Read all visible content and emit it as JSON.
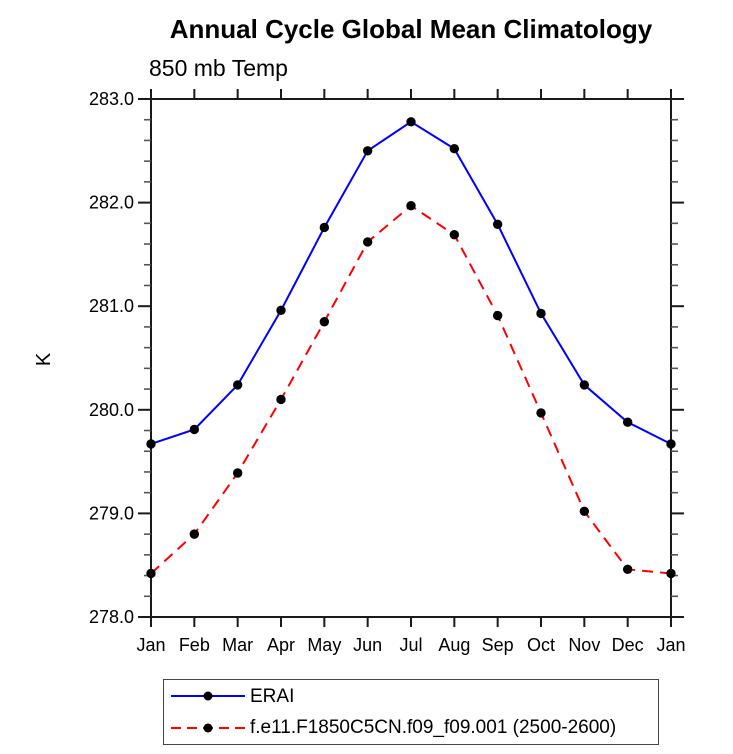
{
  "figure": {
    "background": "#ffffff"
  },
  "chart_data": {
    "type": "line",
    "title": "Annual Cycle Global Mean Climatology",
    "subtitle": "850 mb Temp",
    "ylabel": "K",
    "xlabel": "",
    "categories": [
      "Jan",
      "Feb",
      "Mar",
      "Apr",
      "May",
      "Jun",
      "Jul",
      "Aug",
      "Sep",
      "Oct",
      "Nov",
      "Dec",
      "Jan"
    ],
    "ylim": [
      278.0,
      283.0
    ],
    "ytick_values": [
      278.0,
      279.0,
      280.0,
      281.0,
      282.0,
      283.0
    ],
    "ytick_labels": [
      "278.0",
      "279.0",
      "280.0",
      "281.0",
      "282.0",
      "283.0"
    ],
    "yminor_step": 0.2,
    "grid": false,
    "frame": true,
    "legend_position": "bottom",
    "axis_color": "#1a1a1a",
    "minor_tick_color": "#555555",
    "marker_color": "#000000",
    "series": [
      {
        "name": "ERAI",
        "color": "#0000ff",
        "line_style": "solid",
        "marker": "filled-black-circle",
        "values": [
          279.67,
          279.81,
          280.24,
          280.96,
          281.76,
          282.5,
          282.78,
          282.52,
          281.79,
          280.93,
          280.24,
          279.88,
          279.67
        ]
      },
      {
        "name": "f.e11.F1850C5CN.f09_f09.001 (2500-2600)",
        "color": "#ff0000",
        "line_style": "dashed",
        "marker": "filled-black-circle",
        "values": [
          278.42,
          278.8,
          279.39,
          280.1,
          280.85,
          281.62,
          281.97,
          281.69,
          280.91,
          279.97,
          279.02,
          278.46,
          278.42
        ]
      }
    ]
  }
}
